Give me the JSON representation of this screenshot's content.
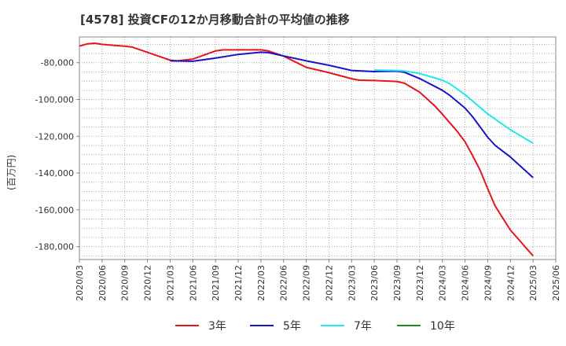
{
  "title": "[4578]  投資CFの12か月移動合計の平均値の推移",
  "y_axis_label": "(百万円)",
  "colors": {
    "3年": "#e8141c",
    "5年": "#1a14c8",
    "7年": "#23e8e8",
    "10年": "#1f8a1f"
  },
  "chart_data": {
    "type": "line",
    "title": "[4578]  投資CFの12か月移動合計の平均値の推移",
    "xlabel": "",
    "ylabel": "(百万円)",
    "ylim": [
      -187000,
      -66000
    ],
    "yticks": [
      -80000,
      -100000,
      -120000,
      -140000,
      -160000,
      -180000
    ],
    "ytick_labels": [
      "-80,000",
      "-100,000",
      "-120,000",
      "-140,000",
      "-160,000",
      "-180,000"
    ],
    "xticks": [
      "2020/03",
      "2020/06",
      "2020/09",
      "2020/12",
      "2021/03",
      "2021/06",
      "2021/09",
      "2021/12",
      "2022/03",
      "2022/06",
      "2022/09",
      "2022/12",
      "2023/03",
      "2023/06",
      "2023/09",
      "2023/12",
      "2024/03",
      "2024/06",
      "2024/09",
      "2024/12",
      "2025/03",
      "2025/06"
    ],
    "grid": true,
    "legend_position": "bottom",
    "series": [
      {
        "name": "3年",
        "x": [
          "2020/03",
          "2020/04",
          "2020/05",
          "2020/06",
          "2020/07",
          "2020/09",
          "2020/10",
          "2020/12",
          "2021/03",
          "2021/04",
          "2021/06",
          "2021/09",
          "2021/10",
          "2021/12",
          "2022/03",
          "2022/04",
          "2022/06",
          "2022/09",
          "2022/12",
          "2023/03",
          "2023/04",
          "2023/06",
          "2023/09",
          "2023/10",
          "2023/12",
          "2024/02",
          "2024/03",
          "2024/05",
          "2024/06",
          "2024/07",
          "2024/08",
          "2024/09",
          "2024/10",
          "2024/12",
          "2025/03"
        ],
        "values": [
          -71000,
          -69800,
          -69400,
          -70000,
          -70400,
          -71000,
          -71500,
          -74400,
          -78600,
          -79000,
          -78000,
          -73600,
          -73000,
          -73000,
          -73000,
          -73600,
          -76400,
          -82500,
          -85400,
          -88700,
          -89500,
          -89700,
          -90200,
          -91200,
          -96000,
          -103500,
          -108000,
          -117500,
          -123000,
          -130500,
          -138500,
          -148500,
          -158000,
          -171000,
          -185000
        ]
      },
      {
        "name": "5年",
        "x": [
          "2021/03",
          "2021/06",
          "2021/09",
          "2021/12",
          "2022/03",
          "2022/04",
          "2022/06",
          "2022/09",
          "2022/12",
          "2023/03",
          "2023/06",
          "2023/09",
          "2023/10",
          "2023/12",
          "2024/03",
          "2024/04",
          "2024/06",
          "2024/07",
          "2024/09",
          "2024/10",
          "2024/12",
          "2025/03"
        ],
        "values": [
          -79000,
          -79200,
          -77500,
          -75500,
          -74300,
          -74500,
          -76300,
          -79000,
          -81400,
          -84200,
          -84800,
          -84600,
          -85200,
          -88600,
          -95000,
          -97800,
          -104700,
          -109400,
          -120500,
          -125000,
          -131300,
          -142500
        ]
      },
      {
        "name": "7年",
        "x": [
          "2023/06",
          "2023/09",
          "2023/10",
          "2023/12",
          "2024/03",
          "2024/04",
          "2024/06",
          "2024/09",
          "2024/12",
          "2025/03"
        ],
        "values": [
          -84000,
          -84200,
          -84500,
          -85900,
          -89500,
          -91500,
          -97400,
          -107800,
          -116500,
          -123800
        ]
      },
      {
        "name": "10年",
        "x": [],
        "values": []
      }
    ]
  }
}
